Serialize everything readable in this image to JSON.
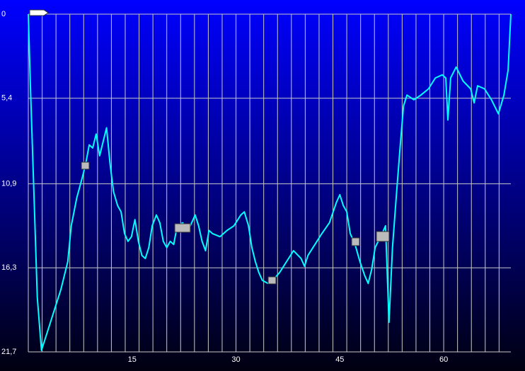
{
  "chart_data": {
    "type": "line",
    "x": [
      0,
      0.3,
      0.9,
      1.3,
      1.9,
      2.7,
      3.7,
      4.7,
      5.7,
      6.2,
      7.0,
      7.8,
      8.3,
      8.8,
      9.3,
      9.8,
      10.3,
      10.8,
      11.3,
      11.8,
      12.3,
      12.9,
      13.4,
      13.9,
      14.4,
      14.9,
      15.4,
      15.9,
      16.4,
      16.9,
      17.4,
      17.9,
      18.5,
      19.0,
      19.5,
      20.0,
      20.5,
      21.0,
      21.5,
      22.3,
      23.1,
      24.1,
      24.6,
      25.1,
      25.6,
      26.1,
      26.6,
      27.7,
      28.7,
      29.7,
      30.7,
      31.2,
      31.8,
      32.3,
      32.8,
      33.3,
      33.8,
      34.6,
      35.3,
      36.3,
      37.3,
      38.3,
      39.4,
      39.9,
      40.4,
      41.4,
      42.4,
      43.5,
      44.5,
      45.0,
      45.5,
      46.0,
      46.5,
      47.2,
      47.9,
      48.6,
      49.1,
      49.6,
      50.1,
      51.1,
      51.6,
      51.9,
      52.1,
      52.6,
      53.2,
      53.7,
      54.2,
      54.7,
      55.7,
      56.7,
      57.8,
      58.8,
      59.8,
      60.3,
      60.6,
      61.0,
      61.8,
      62.8,
      63.9,
      64.4,
      64.9,
      65.9,
      66.9,
      67.9,
      68.7,
      69.3,
      69.7
    ],
    "values": [
      0,
      4.5,
      12.7,
      18.2,
      21.6,
      20.5,
      19.1,
      17.7,
      15.9,
      13.6,
      11.8,
      10.5,
      9.6,
      8.4,
      8.6,
      7.7,
      9.1,
      8.2,
      7.3,
      9.6,
      11.4,
      12.3,
      12.7,
      14.1,
      14.6,
      14.3,
      13.2,
      14.6,
      15.5,
      15.7,
      15.0,
      13.6,
      12.9,
      13.4,
      14.6,
      15.0,
      14.6,
      14.8,
      13.6,
      13.4,
      13.9,
      12.9,
      13.6,
      14.6,
      15.2,
      13.9,
      14.1,
      14.3,
      13.9,
      13.6,
      12.9,
      12.7,
      13.6,
      15.0,
      15.9,
      16.6,
      17.1,
      17.3,
      17.1,
      16.6,
      15.9,
      15.2,
      15.7,
      16.2,
      15.5,
      14.8,
      14.1,
      13.4,
      12.1,
      11.6,
      12.3,
      12.7,
      14.1,
      14.8,
      15.9,
      16.8,
      17.3,
      16.4,
      15.0,
      14.1,
      13.6,
      17.3,
      19.8,
      15.0,
      11.4,
      8.6,
      5.9,
      5.2,
      5.5,
      5.2,
      4.8,
      4.1,
      3.9,
      4.1,
      6.8,
      4.1,
      3.4,
      4.3,
      4.8,
      5.7,
      4.6,
      4.8,
      5.5,
      6.4,
      5.2,
      3.6,
      0
    ],
    "color": "#00ffff",
    "xlim": [
      0,
      69.7
    ],
    "xticks": [
      15,
      30,
      45,
      60
    ],
    "xgrid_step": 2,
    "ylim": [
      0,
      21.7
    ],
    "inverted": true,
    "yticks": [
      0,
      {
        "value": 5.4,
        "label": "5,4"
      },
      {
        "value": 10.9,
        "label": "10,9"
      },
      {
        "value": 16.3,
        "label": "16,3"
      },
      {
        "value": 21.7,
        "label": "21,7"
      }
    ],
    "grid": true
  }
}
